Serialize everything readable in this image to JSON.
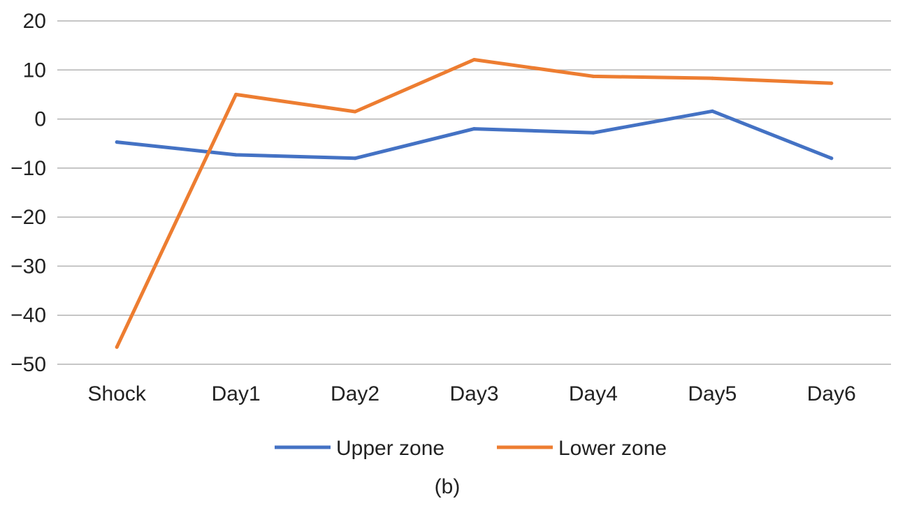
{
  "chart_data": {
    "type": "line",
    "categories": [
      "Shock",
      "Day1",
      "Day2",
      "Day3",
      "Day4",
      "Day5",
      "Day6"
    ],
    "series": [
      {
        "name": "Upper zone",
        "color": "#4472C4",
        "values": [
          -4.7,
          -7.3,
          -8.0,
          -2.0,
          -2.8,
          1.6,
          -8.0
        ]
      },
      {
        "name": "Lower zone",
        "color": "#ED7D31",
        "values": [
          -46.5,
          5.0,
          1.5,
          12.1,
          8.7,
          8.3,
          7.3
        ]
      }
    ],
    "ylim": [
      -50,
      20
    ],
    "yticks": [
      20,
      10,
      0,
      -10,
      -20,
      -30,
      -40,
      -50
    ],
    "ytick_labels": [
      "20",
      "10",
      "0",
      "−10",
      "−20",
      "−30",
      "−40",
      "−50"
    ],
    "grid": true,
    "gridline_color": "#b3b3b3",
    "legend_position": "bottom",
    "caption": "(b)"
  }
}
